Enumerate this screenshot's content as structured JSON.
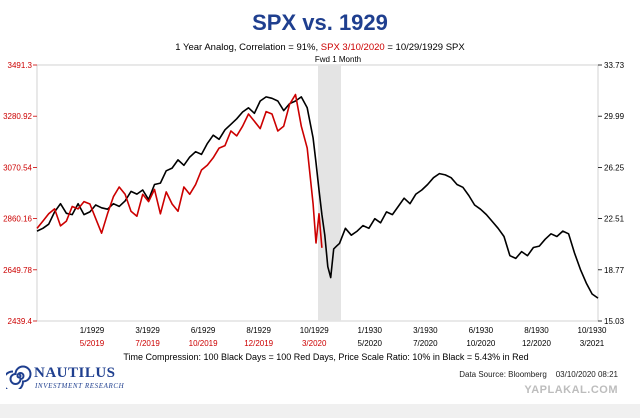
{
  "chart_data": {
    "type": "line",
    "title": "SPX vs. 1929",
    "subtitle_parts": [
      "1 Year Analog, Correlation = 91%, ",
      "SPX 3/10/2020",
      " = 10/29/1929 SPX"
    ],
    "shaded_region_label": "Fwd 1 Month",
    "footnote": "Time Compression: 100 Black Days = 100 Red Days,  Price Scale Ratio: 10% in Black = 5.43% in Red",
    "left_axis": {
      "color": "#cc0000",
      "ticks": [
        "3491.3",
        "3280.92",
        "3070.54",
        "2860.16",
        "2649.78",
        "2439.4"
      ],
      "range": [
        2439.4,
        3491.3
      ]
    },
    "right_axis": {
      "color": "#000000",
      "ticks": [
        "33.73",
        "29.99",
        "26.25",
        "22.51",
        "18.77",
        "15.03"
      ],
      "range": [
        15.03,
        33.73
      ]
    },
    "x_top_labels": [
      "1/1929",
      "3/1929",
      "6/1929",
      "8/1929",
      "10/1929",
      "1/1930",
      "3/1930",
      "6/1930",
      "8/1930",
      "10/1930"
    ],
    "x_bottom_labels": [
      "5/2019",
      "7/2019",
      "10/2019",
      "12/2019",
      "3/2020",
      "5/2020",
      "7/2020",
      "10/2020",
      "12/2020",
      "3/2021"
    ],
    "x_bottom_label_colors": [
      "#cc0000",
      "#cc0000",
      "#cc0000",
      "#cc0000",
      "#cc0000",
      "#000000",
      "#000000",
      "#000000",
      "#000000",
      "#000000"
    ],
    "series": [
      {
        "color": "#000000",
        "axis": "right",
        "x": [
          0,
          4,
          8,
          12,
          16,
          20,
          24,
          28,
          32,
          36,
          40,
          44,
          48,
          52,
          56,
          60,
          64,
          68,
          72,
          76,
          80,
          84,
          88,
          92,
          96,
          100,
          104,
          108,
          112,
          116,
          120,
          124,
          128,
          132,
          136,
          140,
          144,
          148,
          152,
          156,
          160,
          164,
          168,
          172,
          176,
          180,
          184,
          188,
          190,
          192,
          194,
          196,
          198,
          200,
          202,
          204,
          206,
          210,
          214,
          218,
          222,
          226,
          230,
          234,
          238,
          242,
          246,
          250,
          254,
          258,
          262,
          266,
          270,
          274,
          278,
          282,
          286,
          290,
          294,
          298,
          302,
          306,
          310,
          314,
          318,
          322,
          326,
          330,
          334,
          338,
          342,
          346,
          350,
          354,
          358,
          362,
          366,
          370,
          374,
          378,
          382
        ],
        "values": [
          21.6,
          21.8,
          22.1,
          23.0,
          23.6,
          22.9,
          22.8,
          23.6,
          22.8,
          23.0,
          23.5,
          23.3,
          23.2,
          23.6,
          23.4,
          23.8,
          24.5,
          24.3,
          24.6,
          23.9,
          25.0,
          25.1,
          26.0,
          26.2,
          26.8,
          26.4,
          27.0,
          27.4,
          27.2,
          28.0,
          28.6,
          28.3,
          29.0,
          29.4,
          29.8,
          30.3,
          30.6,
          30.2,
          31.1,
          31.4,
          31.3,
          31.1,
          30.4,
          30.9,
          31.1,
          31.4,
          30.6,
          28.4,
          26.6,
          24.6,
          22.8,
          21.3,
          19.0,
          18.2,
          20.3,
          20.5,
          20.7,
          21.8,
          21.3,
          21.6,
          22.0,
          21.8,
          22.5,
          22.2,
          23.0,
          22.8,
          23.4,
          24.0,
          23.6,
          24.3,
          24.6,
          25.0,
          25.5,
          25.8,
          25.7,
          25.5,
          25.0,
          24.8,
          24.2,
          23.5,
          23.2,
          22.8,
          22.3,
          21.8,
          21.2,
          19.8,
          19.6,
          20.1,
          19.8,
          20.4,
          20.5,
          21.0,
          21.4,
          21.2,
          21.6,
          21.4,
          20.0,
          18.8,
          17.8,
          17.0,
          16.7
        ]
      },
      {
        "color": "#cc0000",
        "axis": "left",
        "x": [
          0,
          4,
          8,
          12,
          16,
          20,
          24,
          28,
          32,
          36,
          40,
          44,
          48,
          52,
          56,
          60,
          64,
          68,
          72,
          76,
          80,
          84,
          88,
          92,
          96,
          100,
          104,
          108,
          112,
          116,
          120,
          124,
          128,
          132,
          136,
          140,
          144,
          148,
          152,
          156,
          160,
          164,
          168,
          172,
          176,
          180,
          184,
          188,
          190,
          192,
          194
        ],
        "values": [
          2820,
          2850,
          2880,
          2900,
          2830,
          2850,
          2910,
          2900,
          2930,
          2920,
          2860,
          2800,
          2880,
          2950,
          2990,
          2960,
          2890,
          2870,
          2960,
          2930,
          2980,
          2880,
          2970,
          2920,
          2890,
          2990,
          2960,
          3000,
          3060,
          3080,
          3110,
          3150,
          3160,
          3220,
          3200,
          3240,
          3290,
          3260,
          3230,
          3300,
          3290,
          3220,
          3240,
          3330,
          3370,
          3240,
          3150,
          2920,
          2760,
          2880,
          2740
        ]
      }
    ],
    "source_text": "Data Source: Bloomberg",
    "date_stamp": "03/10/2020 08:21",
    "brand": {
      "name": "NAUTILUS",
      "tagline": "INVESTMENT RESEARCH",
      "color": "#1f3f8f"
    },
    "watermark": "YAPLAKAL.COM"
  }
}
